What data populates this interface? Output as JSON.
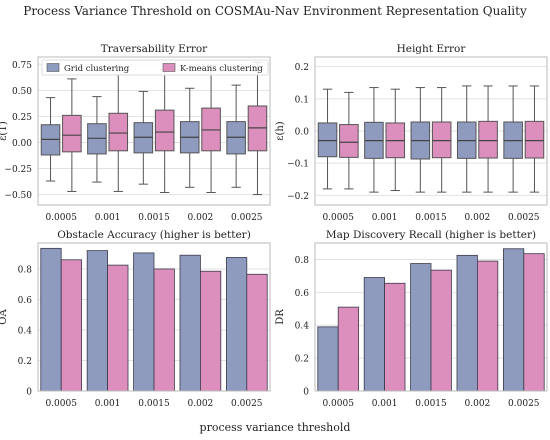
{
  "figure": {
    "suptitle": "Process Variance Threshold on COSMAu-Nav Environment Representation Quality",
    "xlabel": "process variance threshold"
  },
  "colors": {
    "grid": "#8e9bbf",
    "kmeans": "#dc8fbd",
    "edge": "#3a3a4a"
  },
  "chart_data": [
    {
      "type": "box",
      "title": "Traversability Error",
      "ylabel": "ε(T)",
      "ylim": [
        -0.6,
        0.82
      ],
      "yticks": [
        -0.5,
        -0.25,
        0.0,
        0.25,
        0.5,
        0.75
      ],
      "ytick_labels": [
        "−0.50",
        "−0.25",
        "0.00",
        "0.25",
        "0.50",
        "0.75"
      ],
      "categories": [
        "0.0005",
        "0.001",
        "0.0015",
        "0.002",
        "0.0025"
      ],
      "legend": {
        "position": "top-left",
        "entries": [
          "Grid clustering",
          "K-means clustering"
        ]
      },
      "series": [
        {
          "name": "Grid clustering",
          "color": "grid",
          "boxes": [
            {
              "whislo": -0.37,
              "q1": -0.12,
              "med": 0.03,
              "q3": 0.17,
              "whishi": 0.43
            },
            {
              "whislo": -0.38,
              "q1": -0.11,
              "med": 0.04,
              "q3": 0.18,
              "whishi": 0.44
            },
            {
              "whislo": -0.4,
              "q1": -0.1,
              "med": 0.05,
              "q3": 0.19,
              "whishi": 0.49
            },
            {
              "whislo": -0.43,
              "q1": -0.1,
              "med": 0.05,
              "q3": 0.2,
              "whishi": 0.52
            },
            {
              "whislo": -0.43,
              "q1": -0.11,
              "med": 0.05,
              "q3": 0.2,
              "whishi": 0.55
            }
          ]
        },
        {
          "name": "K-means clustering",
          "color": "kmeans",
          "boxes": [
            {
              "whislo": -0.47,
              "q1": -0.09,
              "med": 0.07,
              "q3": 0.26,
              "whishi": 0.61
            },
            {
              "whislo": -0.47,
              "q1": -0.08,
              "med": 0.09,
              "q3": 0.28,
              "whishi": 0.65
            },
            {
              "whislo": -0.48,
              "q1": -0.08,
              "med": 0.1,
              "q3": 0.31,
              "whishi": 0.7
            },
            {
              "whislo": -0.48,
              "q1": -0.08,
              "med": 0.12,
              "q3": 0.33,
              "whishi": 0.74
            },
            {
              "whislo": -0.5,
              "q1": -0.08,
              "med": 0.14,
              "q3": 0.35,
              "whishi": 0.77
            }
          ]
        }
      ]
    },
    {
      "type": "box",
      "title": "Height Error",
      "ylabel": "ε(h)",
      "ylim": [
        -0.23,
        0.23
      ],
      "yticks": [
        -0.2,
        -0.1,
        0.0,
        0.1,
        0.2
      ],
      "ytick_labels": [
        "−0.2",
        "−0.1",
        "0.0",
        "0.1",
        "0.2"
      ],
      "categories": [
        "0.0005",
        "0.001",
        "0.0015",
        "0.002",
        "0.0025"
      ],
      "series": [
        {
          "name": "Grid clustering",
          "color": "grid",
          "boxes": [
            {
              "whislo": -0.18,
              "q1": -0.08,
              "med": -0.03,
              "q3": 0.025,
              "whishi": 0.13
            },
            {
              "whislo": -0.19,
              "q1": -0.085,
              "med": -0.03,
              "q3": 0.027,
              "whishi": 0.135
            },
            {
              "whislo": -0.19,
              "q1": -0.087,
              "med": -0.03,
              "q3": 0.028,
              "whishi": 0.135
            },
            {
              "whislo": -0.19,
              "q1": -0.085,
              "med": -0.03,
              "q3": 0.028,
              "whishi": 0.14
            },
            {
              "whislo": -0.19,
              "q1": -0.085,
              "med": -0.03,
              "q3": 0.028,
              "whishi": 0.14
            }
          ]
        },
        {
          "name": "K-means clustering",
          "color": "kmeans",
          "boxes": [
            {
              "whislo": -0.18,
              "q1": -0.082,
              "med": -0.035,
              "q3": 0.02,
              "whishi": 0.12
            },
            {
              "whislo": -0.185,
              "q1": -0.083,
              "med": -0.03,
              "q3": 0.025,
              "whishi": 0.13
            },
            {
              "whislo": -0.19,
              "q1": -0.083,
              "med": -0.03,
              "q3": 0.028,
              "whishi": 0.135
            },
            {
              "whislo": -0.19,
              "q1": -0.084,
              "med": -0.03,
              "q3": 0.03,
              "whishi": 0.14
            },
            {
              "whislo": -0.19,
              "q1": -0.084,
              "med": -0.03,
              "q3": 0.03,
              "whishi": 0.14
            }
          ]
        }
      ]
    },
    {
      "type": "bar",
      "title": "Obstacle Accuracy (higher is better)",
      "ylabel": "OA",
      "ylim": [
        0,
        0.97
      ],
      "yticks": [
        0,
        0.2,
        0.4,
        0.6,
        0.8
      ],
      "ytick_labels": [
        "0",
        "0.2",
        "0.4",
        "0.6",
        "0.8"
      ],
      "categories": [
        "0.0005",
        "0.001",
        "0.0015",
        "0.002",
        "0.0025"
      ],
      "series": [
        {
          "name": "Grid clustering",
          "color": "grid",
          "values": [
            0.935,
            0.92,
            0.905,
            0.89,
            0.875
          ]
        },
        {
          "name": "K-means clustering",
          "color": "kmeans",
          "values": [
            0.86,
            0.825,
            0.8,
            0.785,
            0.765
          ]
        }
      ]
    },
    {
      "type": "bar",
      "title": "Map Discovery Recall (higher is better)",
      "ylabel": "DR",
      "ylim": [
        0,
        0.9
      ],
      "yticks": [
        0,
        0.2,
        0.4,
        0.6,
        0.8
      ],
      "ytick_labels": [
        "0",
        "0.2",
        "0.4",
        "0.6",
        "0.8"
      ],
      "categories": [
        "0.0005",
        "0.001",
        "0.0015",
        "0.002",
        "0.0025"
      ],
      "series": [
        {
          "name": "Grid clustering",
          "color": "grid",
          "values": [
            0.39,
            0.69,
            0.775,
            0.825,
            0.865
          ]
        },
        {
          "name": "K-means clustering",
          "color": "kmeans",
          "values": [
            0.51,
            0.655,
            0.735,
            0.79,
            0.835
          ]
        }
      ]
    }
  ]
}
